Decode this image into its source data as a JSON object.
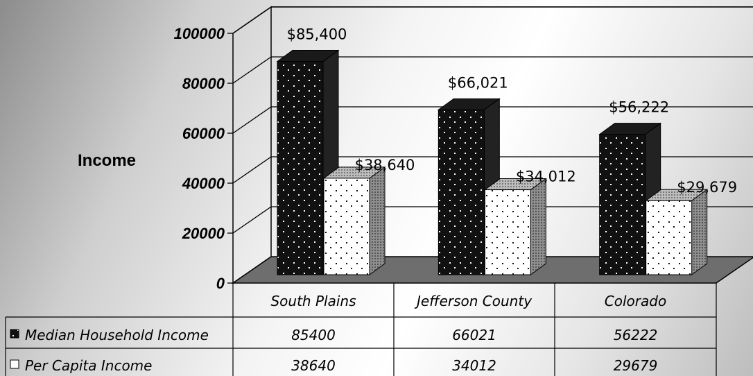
{
  "chart_data": {
    "type": "bar",
    "ylabel": "Income",
    "ylim": [
      0,
      100000
    ],
    "yticks": [
      "0",
      "20000",
      "40000",
      "60000",
      "80000",
      "100000"
    ],
    "categories": [
      "South Plains",
      "Jefferson County",
      "Colorado"
    ],
    "series": [
      {
        "name": "Median Household Income",
        "values": [
          85400,
          66021,
          56222
        ],
        "data_labels": [
          "$85,400",
          "$66,021",
          "$56,222"
        ],
        "color": "#111111"
      },
      {
        "name": "Per Capita Income",
        "values": [
          38640,
          34012,
          29679
        ],
        "data_labels": [
          "$38,640",
          "$34,012",
          "$29,679"
        ],
        "color": "#ffffff"
      }
    ],
    "data_table": {
      "rows": [
        {
          "label": "Median Household Income",
          "cells": [
            "85400",
            "66021",
            "56222"
          ]
        },
        {
          "label": "Per Capita Income",
          "cells": [
            "38640",
            "34012",
            "29679"
          ]
        }
      ]
    },
    "grid": true,
    "style": "3d-clustered-column"
  }
}
